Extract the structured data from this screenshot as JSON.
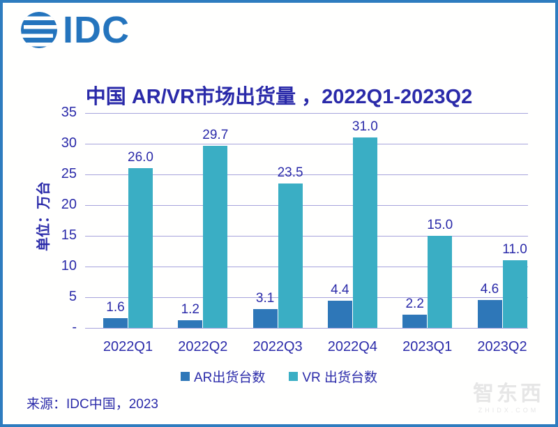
{
  "page": {
    "logo_text": "IDC",
    "source": "来源：IDC中国，2023",
    "watermark": {
      "text": "智东西",
      "subtext": "ZHIDX.COM"
    }
  },
  "colors": {
    "border": "#2E7CBF",
    "navy_text": "#2A2AA9",
    "gridline": "#A6A3DC",
    "ar_bar": "#2E77B8",
    "vr_bar": "#3AAEC4",
    "logo_blue": "#2474BD",
    "watermark_gray": "#E6E6E6"
  },
  "chart_data": {
    "type": "bar",
    "title": "中国 AR/VR市场出货量 ，2022Q1-2023Q2",
    "ylabel": "单位：万台",
    "xlabel": "",
    "categories": [
      "2022Q1",
      "2022Q2",
      "2022Q3",
      "2022Q4",
      "2023Q1",
      "2023Q2"
    ],
    "series": [
      {
        "name": "AR出货台数",
        "color": "#2E77B8",
        "values": [
          1.6,
          1.2,
          3.1,
          4.4,
          2.2,
          4.6
        ]
      },
      {
        "name": "VR 出货台数",
        "color": "#3AAEC4",
        "values": [
          26.0,
          29.7,
          23.5,
          31.0,
          15.0,
          11.0
        ]
      }
    ],
    "ylim": [
      0,
      35
    ],
    "ytick_values": [
      0,
      5,
      10,
      15,
      20,
      25,
      30,
      35
    ],
    "ytick_labels": [
      "-",
      "5",
      "10",
      "15",
      "20",
      "25",
      "30",
      "35"
    ],
    "grid": true,
    "legend_position": "bottom",
    "value_label_decimals": 1
  }
}
